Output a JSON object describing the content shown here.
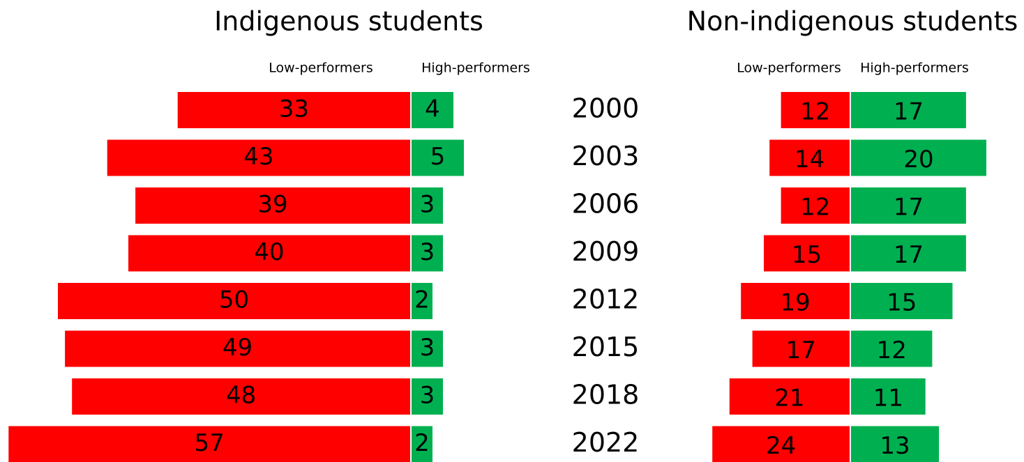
{
  "chart_data": [
    {
      "type": "diverging-bar",
      "title": "Indigenous students",
      "categories": [
        "2000",
        "2003",
        "2006",
        "2009",
        "2012",
        "2015",
        "2018",
        "2022"
      ],
      "series": [
        {
          "name": "Low-performers",
          "color": "#ff0000",
          "values": [
            33,
            43,
            39,
            40,
            50,
            49,
            48,
            57
          ]
        },
        {
          "name": "High-performers",
          "color": "#00b050",
          "values": [
            4,
            5,
            3,
            3,
            2,
            3,
            3,
            2
          ]
        }
      ]
    },
    {
      "type": "diverging-bar",
      "title": "Non-indigenous students",
      "series": [
        {
          "name": "Low-performers",
          "color": "#ff0000",
          "values": [
            12,
            14,
            12,
            15,
            19,
            17,
            21,
            24
          ]
        },
        {
          "name": "High-performers",
          "color": "#00b050",
          "values": [
            17,
            20,
            17,
            17,
            15,
            12,
            11,
            13
          ]
        }
      ]
    }
  ]
}
